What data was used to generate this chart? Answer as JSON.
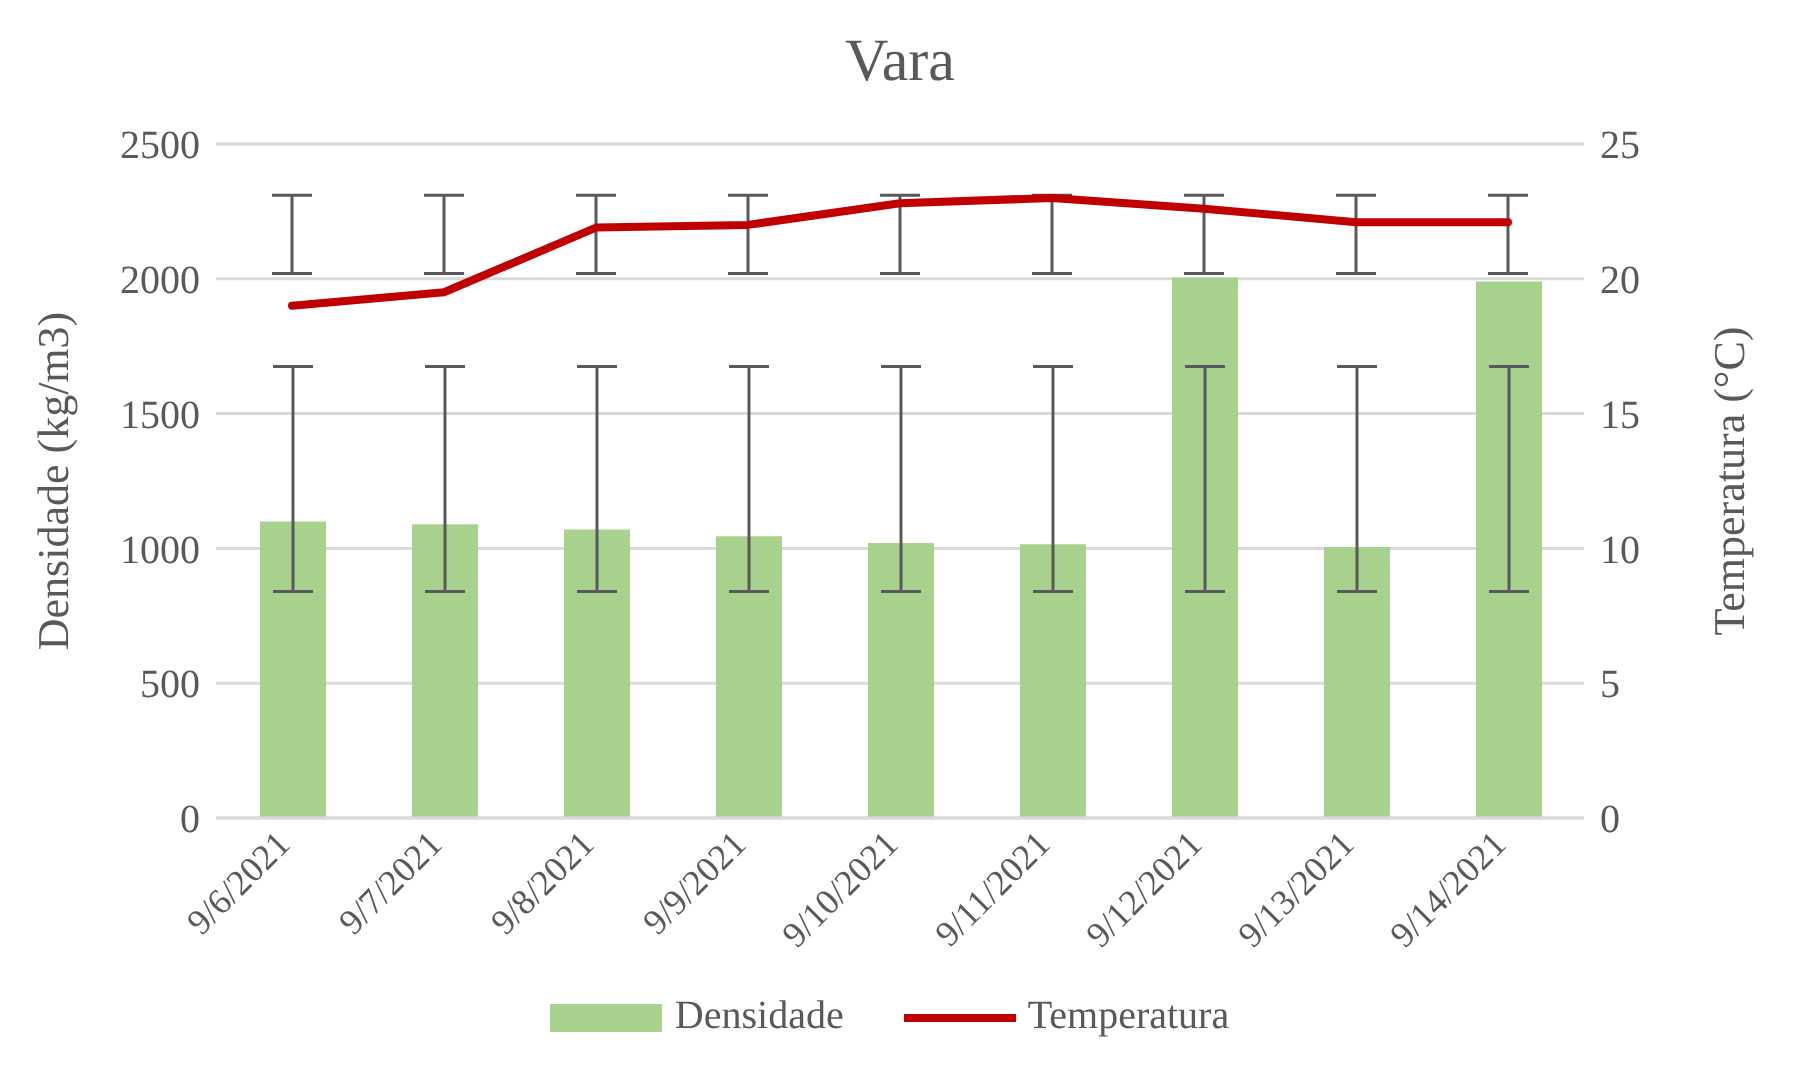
{
  "chart_data": {
    "type": "bar",
    "title": "Vara",
    "ylabel": "Densidade (kg/m3)",
    "y2label": "Temperatura (°C)",
    "categories": [
      "9/6/2021",
      "9/7/2021",
      "9/8/2021",
      "9/9/2021",
      "9/10/2021",
      "9/11/2021",
      "9/12/2021",
      "9/13/2021",
      "9/14/2021"
    ],
    "series": [
      {
        "name": "Densidade",
        "color": "#a9d18e",
        "values": [
          1100,
          1090,
          1070,
          1045,
          1020,
          1015,
          2005,
          1005,
          1990
        ],
        "errors": [
          [
            840,
            1675
          ],
          [
            840,
            1675
          ],
          [
            840,
            1675
          ],
          [
            840,
            1675
          ],
          [
            840,
            1675
          ],
          [
            840,
            1675
          ],
          [
            840,
            1675
          ],
          [
            840,
            1675
          ],
          [
            840,
            1675
          ]
        ]
      },
      {
        "name": "Temperatura",
        "type": "line",
        "axis": "y2",
        "color": "#c00000",
        "values": [
          19.0,
          19.5,
          21.9,
          22.0,
          22.8,
          23.0,
          22.6,
          22.1,
          22.1
        ],
        "errors": [
          [
            20.2,
            23.1
          ],
          [
            20.2,
            23.1
          ],
          [
            20.2,
            23.1
          ],
          [
            20.2,
            23.1
          ],
          [
            20.2,
            23.1
          ],
          [
            20.2,
            23.1
          ],
          [
            20.2,
            23.1
          ],
          [
            20.2,
            23.1
          ],
          [
            20.2,
            23.1
          ]
        ],
        "marker": "none",
        "line_style": "solid"
      }
    ],
    "ylim": [
      0,
      2500
    ],
    "yticks": [
      0,
      500,
      1000,
      1500,
      2000,
      2500
    ],
    "y2lim": [
      0,
      25
    ],
    "y2ticks": [
      0,
      5,
      10,
      15,
      20,
      25
    ],
    "grid": "y",
    "legend": "bottom"
  }
}
